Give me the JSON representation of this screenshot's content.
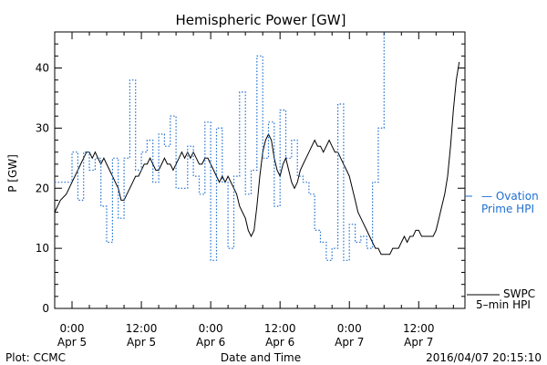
{
  "chart_data": {
    "type": "line",
    "title": "Hemispheric Power [GW]",
    "ylabel": "P [GW]",
    "xlabel": "Date and Time",
    "ylim": [
      0,
      46
    ],
    "yticks": [
      0,
      10,
      20,
      30,
      40
    ],
    "xlim": [
      -3,
      68
    ],
    "x_unit": "hours since 2016-04-05 00:00",
    "xticks": [
      {
        "t": 0,
        "time": "0:00",
        "date": "Apr 5"
      },
      {
        "t": 12,
        "time": "12:00",
        "date": "Apr 5"
      },
      {
        "t": 24,
        "time": "0:00",
        "date": "Apr 6"
      },
      {
        "t": 36,
        "time": "12:00",
        "date": "Apr 6"
      },
      {
        "t": 48,
        "time": "0:00",
        "date": "Apr 7"
      },
      {
        "t": 60,
        "time": "12:00",
        "date": "Apr 7"
      }
    ],
    "series": [
      {
        "name": "SWPC 5-min HPI",
        "label_lines": [
          "SWPC",
          "5–min HPI"
        ],
        "color": "#000000",
        "style": "solid",
        "points": [
          [
            -3,
            16
          ],
          [
            -2,
            18
          ],
          [
            -1,
            19
          ],
          [
            0,
            21
          ],
          [
            0.5,
            22
          ],
          [
            1,
            23
          ],
          [
            1.5,
            24
          ],
          [
            2,
            25
          ],
          [
            2.5,
            26
          ],
          [
            3,
            26
          ],
          [
            3.5,
            25
          ],
          [
            4,
            26
          ],
          [
            4.5,
            25
          ],
          [
            5,
            24
          ],
          [
            5.5,
            25
          ],
          [
            6,
            24
          ],
          [
            6.5,
            23
          ],
          [
            7,
            22
          ],
          [
            7.5,
            21
          ],
          [
            8,
            20
          ],
          [
            8.5,
            18
          ],
          [
            9,
            18
          ],
          [
            9.5,
            19
          ],
          [
            10,
            20
          ],
          [
            10.5,
            21
          ],
          [
            11,
            22
          ],
          [
            11.5,
            22
          ],
          [
            12,
            23
          ],
          [
            12.5,
            24
          ],
          [
            13,
            24
          ],
          [
            13.5,
            25
          ],
          [
            14,
            24
          ],
          [
            14.5,
            23
          ],
          [
            15,
            23
          ],
          [
            15.5,
            24
          ],
          [
            16,
            25
          ],
          [
            16.5,
            24
          ],
          [
            17,
            24
          ],
          [
            17.5,
            23
          ],
          [
            18,
            24
          ],
          [
            18.5,
            25
          ],
          [
            19,
            26
          ],
          [
            19.5,
            25
          ],
          [
            20,
            26
          ],
          [
            20.5,
            25
          ],
          [
            21,
            26
          ],
          [
            21.5,
            25
          ],
          [
            22,
            24
          ],
          [
            22.5,
            24
          ],
          [
            23,
            25
          ],
          [
            23.5,
            25
          ],
          [
            24,
            24
          ],
          [
            24.5,
            23
          ],
          [
            25,
            22
          ],
          [
            25.5,
            21
          ],
          [
            26,
            22
          ],
          [
            26.5,
            21
          ],
          [
            27,
            22
          ],
          [
            27.5,
            21
          ],
          [
            28,
            20
          ],
          [
            28.5,
            19
          ],
          [
            29,
            17
          ],
          [
            29.5,
            16
          ],
          [
            30,
            15
          ],
          [
            30.5,
            13
          ],
          [
            31,
            12
          ],
          [
            31.5,
            13
          ],
          [
            32,
            17
          ],
          [
            32.5,
            22
          ],
          [
            33,
            26
          ],
          [
            33.5,
            28
          ],
          [
            34,
            29
          ],
          [
            34.5,
            28
          ],
          [
            35,
            25
          ],
          [
            35.5,
            23
          ],
          [
            36,
            22
          ],
          [
            36.5,
            24
          ],
          [
            37,
            25
          ],
          [
            37.5,
            23
          ],
          [
            38,
            21
          ],
          [
            38.5,
            20
          ],
          [
            39,
            21
          ],
          [
            39.5,
            23
          ],
          [
            40,
            24
          ],
          [
            40.5,
            25
          ],
          [
            41,
            26
          ],
          [
            41.5,
            27
          ],
          [
            42,
            28
          ],
          [
            42.5,
            27
          ],
          [
            43,
            27
          ],
          [
            43.5,
            26
          ],
          [
            44,
            27
          ],
          [
            44.5,
            28
          ],
          [
            45,
            27
          ],
          [
            45.5,
            26
          ],
          [
            46,
            26
          ],
          [
            46.5,
            25
          ],
          [
            47,
            24
          ],
          [
            47.5,
            23
          ],
          [
            48,
            22
          ],
          [
            48.5,
            20
          ],
          [
            49,
            18
          ],
          [
            49.5,
            16
          ],
          [
            50,
            15
          ],
          [
            50.5,
            14
          ],
          [
            51,
            13
          ],
          [
            51.5,
            12
          ],
          [
            52,
            11
          ],
          [
            52.5,
            10
          ],
          [
            53,
            10
          ],
          [
            53.5,
            9
          ],
          [
            54,
            9
          ],
          [
            54.5,
            9
          ],
          [
            55,
            9
          ],
          [
            55.5,
            10
          ],
          [
            56,
            10
          ],
          [
            56.5,
            10
          ],
          [
            57,
            11
          ],
          [
            57.5,
            12
          ],
          [
            58,
            11
          ],
          [
            58.5,
            12
          ],
          [
            59,
            12
          ],
          [
            59.5,
            13
          ],
          [
            60,
            13
          ],
          [
            60.5,
            12
          ],
          [
            61,
            12
          ],
          [
            61.5,
            12
          ],
          [
            62,
            12
          ],
          [
            62.5,
            12
          ],
          [
            63,
            13
          ],
          [
            63.5,
            15
          ],
          [
            64,
            17
          ],
          [
            64.5,
            19
          ],
          [
            65,
            22
          ],
          [
            65.5,
            27
          ],
          [
            66,
            33
          ],
          [
            66.5,
            38
          ],
          [
            67,
            41
          ]
        ]
      },
      {
        "name": "Ovation Prime HPI",
        "label_lines": [
          "— Ovation",
          "Prime HPI"
        ],
        "color": "#1f6fd1",
        "style": "dotted",
        "points": [
          [
            -3,
            21
          ],
          [
            0,
            21
          ],
          [
            0,
            26
          ],
          [
            1,
            26
          ],
          [
            1,
            18
          ],
          [
            2,
            18
          ],
          [
            2,
            26
          ],
          [
            3,
            26
          ],
          [
            3,
            23
          ],
          [
            4,
            23
          ],
          [
            4,
            25
          ],
          [
            5,
            25
          ],
          [
            5,
            17
          ],
          [
            6,
            17
          ],
          [
            6,
            11
          ],
          [
            7,
            11
          ],
          [
            7,
            25
          ],
          [
            8,
            25
          ],
          [
            8,
            15
          ],
          [
            9,
            15
          ],
          [
            9,
            25
          ],
          [
            10,
            25
          ],
          [
            10,
            38
          ],
          [
            11,
            38
          ],
          [
            11,
            23
          ],
          [
            12,
            23
          ],
          [
            12,
            26
          ],
          [
            13,
            26
          ],
          [
            13,
            28
          ],
          [
            14,
            28
          ],
          [
            14,
            21
          ],
          [
            15,
            21
          ],
          [
            15,
            29
          ],
          [
            16,
            29
          ],
          [
            16,
            27
          ],
          [
            17,
            27
          ],
          [
            17,
            32
          ],
          [
            18,
            32
          ],
          [
            18,
            20
          ],
          [
            19,
            20
          ],
          [
            19,
            20
          ],
          [
            20,
            20
          ],
          [
            20,
            27
          ],
          [
            21,
            27
          ],
          [
            21,
            22
          ],
          [
            22,
            22
          ],
          [
            22,
            19
          ],
          [
            23,
            19
          ],
          [
            23,
            31
          ],
          [
            24,
            31
          ],
          [
            24,
            8
          ],
          [
            25,
            8
          ],
          [
            25,
            30
          ],
          [
            26,
            30
          ],
          [
            26,
            21
          ],
          [
            27,
            21
          ],
          [
            27,
            10
          ],
          [
            28,
            10
          ],
          [
            28,
            22
          ],
          [
            29,
            22
          ],
          [
            29,
            36
          ],
          [
            30,
            36
          ],
          [
            30,
            19
          ],
          [
            31,
            19
          ],
          [
            31,
            23
          ],
          [
            32,
            23
          ],
          [
            32,
            42
          ],
          [
            33,
            42
          ],
          [
            33,
            25
          ],
          [
            34,
            25
          ],
          [
            34,
            31
          ],
          [
            35,
            31
          ],
          [
            35,
            17
          ],
          [
            36,
            17
          ],
          [
            36,
            33
          ],
          [
            37,
            33
          ],
          [
            37,
            25
          ],
          [
            38,
            25
          ],
          [
            38,
            28
          ],
          [
            39,
            28
          ],
          [
            39,
            22
          ],
          [
            40,
            22
          ],
          [
            40,
            21
          ],
          [
            41,
            21
          ],
          [
            41,
            19
          ],
          [
            42,
            19
          ],
          [
            42,
            13
          ],
          [
            43,
            13
          ],
          [
            43,
            11
          ],
          [
            44,
            11
          ],
          [
            44,
            8
          ],
          [
            45,
            8
          ],
          [
            45,
            10
          ],
          [
            46,
            10
          ],
          [
            46,
            34
          ],
          [
            47,
            34
          ],
          [
            47,
            8
          ],
          [
            48,
            8
          ],
          [
            48,
            14
          ],
          [
            49,
            14
          ],
          [
            49,
            11
          ],
          [
            50,
            11
          ],
          [
            50,
            12
          ],
          [
            51,
            12
          ],
          [
            51,
            10
          ],
          [
            52,
            10
          ],
          [
            52,
            21
          ],
          [
            53,
            21
          ],
          [
            53,
            30
          ],
          [
            54,
            30
          ],
          [
            54,
            46
          ]
        ]
      }
    ]
  },
  "footer": {
    "left": "Plot: CCMC",
    "center": "Date and Time",
    "right": "2016/04/07 20:15:10"
  }
}
